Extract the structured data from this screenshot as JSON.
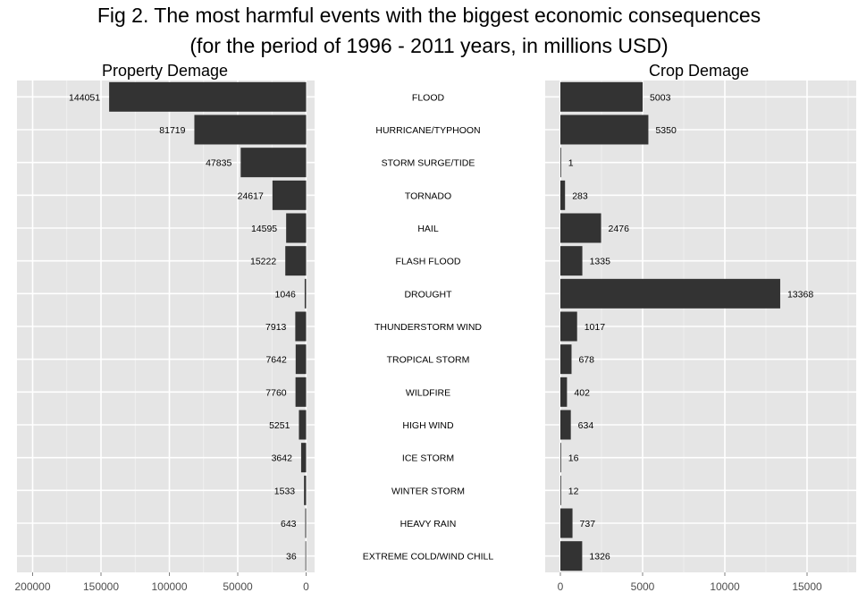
{
  "figure": {
    "title_line1": "Fig 2. The most harmful events with the biggest economic consequences",
    "title_line2": "(for the period of 1996 - 2011 years, in millions USD)"
  },
  "chart_data": [
    {
      "type": "bar",
      "orientation": "horizontal",
      "direction": "reversed",
      "title": "Property Demage",
      "categories": [
        "FLOOD",
        "HURRICANE/TYPHOON",
        "STORM SURGE/TIDE",
        "TORNADO",
        "HAIL",
        "FLASH FLOOD",
        "DROUGHT",
        "THUNDERSTORM WIND",
        "TROPICAL STORM",
        "WILDFIRE",
        "HIGH WIND",
        "ICE STORM",
        "WINTER STORM",
        "HEAVY RAIN",
        "EXTREME COLD/WIND CHILL"
      ],
      "values": [
        144051,
        81719,
        47835,
        24617,
        14595,
        15222,
        1046,
        7913,
        7642,
        7760,
        5251,
        3642,
        1533,
        643,
        36
      ],
      "xlim": [
        0,
        200000
      ],
      "xticks": [
        "200000",
        "150000",
        "100000",
        "50000",
        "0"
      ],
      "tick_values": [
        200000,
        150000,
        100000,
        50000,
        0
      ],
      "grid": true,
      "bar_color": "#333333",
      "panel_bg": "#e5e5e5"
    },
    {
      "type": "bar",
      "orientation": "horizontal",
      "title": "Crop Demage",
      "categories": [
        "FLOOD",
        "HURRICANE/TYPHOON",
        "STORM SURGE/TIDE",
        "TORNADO",
        "HAIL",
        "FLASH FLOOD",
        "DROUGHT",
        "THUNDERSTORM WIND",
        "TROPICAL STORM",
        "WILDFIRE",
        "HIGH WIND",
        "ICE STORM",
        "WINTER STORM",
        "HEAVY RAIN",
        "EXTREME COLD/WIND CHILL"
      ],
      "values": [
        5003,
        5350,
        1,
        283,
        2476,
        1335,
        13368,
        1017,
        678,
        402,
        634,
        16,
        12,
        737,
        1326
      ],
      "xlim": [
        0,
        18000
      ],
      "xticks": [
        "0",
        "5000",
        "10000",
        "15000"
      ],
      "tick_values": [
        0,
        5000,
        10000,
        15000
      ],
      "grid": true,
      "bar_color": "#333333",
      "panel_bg": "#e5e5e5"
    }
  ]
}
